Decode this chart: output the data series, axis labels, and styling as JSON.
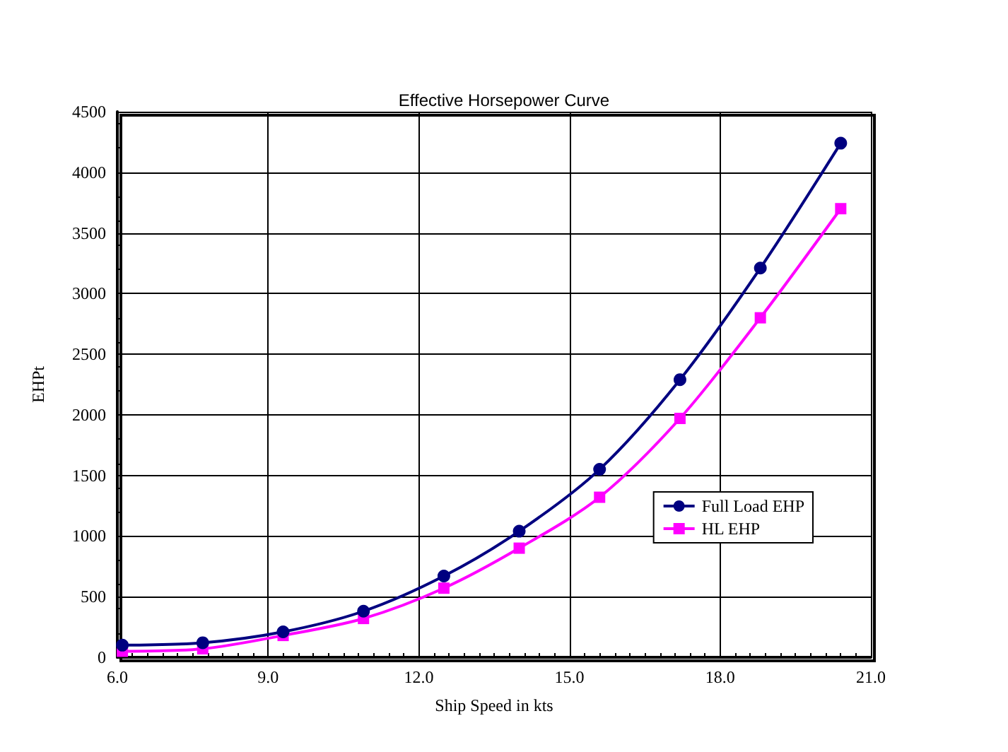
{
  "chart_data": {
    "type": "line",
    "title": "Effective Horsepower Curve",
    "xlabel": "Ship Speed in kts",
    "ylabel": "EHPt",
    "x": [
      6.1,
      7.7,
      9.3,
      10.9,
      12.5,
      14.0,
      15.6,
      17.2,
      18.8,
      20.4
    ],
    "series": [
      {
        "name": "Full Load EHP",
        "color": "#000080",
        "marker": "circle",
        "values": [
          100,
          120,
          210,
          380,
          670,
          1040,
          1550,
          2290,
          3210,
          4240
        ]
      },
      {
        "name": "HL EHP",
        "color": "#ff00ff",
        "marker": "square",
        "values": [
          50,
          70,
          180,
          320,
          570,
          900,
          1320,
          1970,
          2800,
          3700
        ]
      }
    ],
    "xlim": [
      6,
      21
    ],
    "xticks": [
      {
        "value": 6,
        "label": "6.0"
      },
      {
        "value": 9,
        "label": "9.0"
      },
      {
        "value": 12,
        "label": "12.0"
      },
      {
        "value": 15,
        "label": "15.0"
      },
      {
        "value": 18,
        "label": "18.0"
      },
      {
        "value": 21,
        "label": "21.0"
      }
    ],
    "ylim": [
      0,
      4500
    ],
    "yticks": [
      0,
      500,
      1000,
      1500,
      2000,
      2500,
      3000,
      3500,
      4000,
      4500
    ],
    "grid": true,
    "legend": "bottom right",
    "line_style": "solid"
  }
}
